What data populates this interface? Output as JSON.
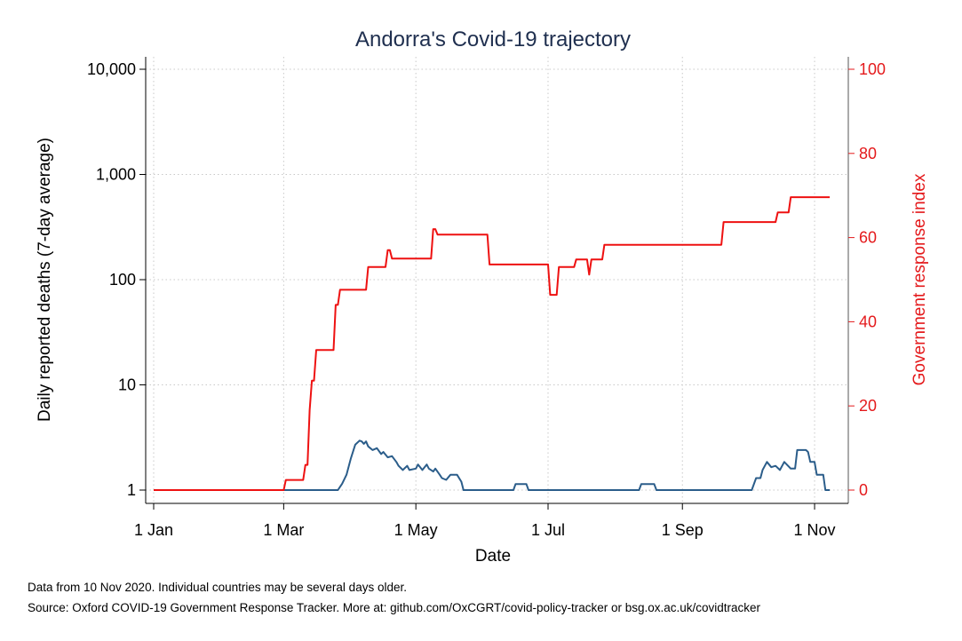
{
  "chart_data": {
    "type": "line",
    "title": "Andorra's Covid-19 trajectory",
    "xlabel": "Date",
    "ylabel_left": "Daily reported deaths (7-day average)",
    "ylabel_right": "Government response index",
    "y_left_scale": "log",
    "y_left_lim": [
      1,
      10000
    ],
    "y_left_ticks": [
      1,
      10,
      100,
      1000,
      10000
    ],
    "y_left_tick_labels": [
      "1",
      "10",
      "100",
      "1,000",
      "10,000"
    ],
    "y_right_lim": [
      0,
      100
    ],
    "y_right_ticks": [
      0,
      20,
      40,
      60,
      80,
      100
    ],
    "y_right_tick_labels": [
      "0",
      "20",
      "40",
      "60",
      "80",
      "100"
    ],
    "x_lim": [
      "2020-01-01",
      "2020-11-10"
    ],
    "x_ticks": [
      "2020-01-01",
      "2020-03-01",
      "2020-05-01",
      "2020-07-01",
      "2020-09-01",
      "2020-11-01"
    ],
    "x_tick_labels": [
      "1 Jan",
      "1 Mar",
      "1 May",
      "1 Jul",
      "1 Sep",
      "1 Nov"
    ],
    "grid": true,
    "series": [
      {
        "axis": "left",
        "color": "#2b5d8a",
        "points": [
          [
            "2020-01-01",
            1
          ],
          [
            "2020-03-26",
            1
          ],
          [
            "2020-03-28",
            1.15
          ],
          [
            "2020-03-30",
            1.4
          ],
          [
            "2020-04-01",
            2.0
          ],
          [
            "2020-04-03",
            2.7
          ],
          [
            "2020-04-05",
            2.95
          ],
          [
            "2020-04-06",
            2.9
          ],
          [
            "2020-04-07",
            2.75
          ],
          [
            "2020-04-08",
            2.9
          ],
          [
            "2020-04-09",
            2.6
          ],
          [
            "2020-04-11",
            2.4
          ],
          [
            "2020-04-13",
            2.5
          ],
          [
            "2020-04-15",
            2.2
          ],
          [
            "2020-04-16",
            2.3
          ],
          [
            "2020-04-18",
            2.05
          ],
          [
            "2020-04-20",
            2.1
          ],
          [
            "2020-04-22",
            1.85
          ],
          [
            "2020-04-23",
            1.7
          ],
          [
            "2020-04-25",
            1.55
          ],
          [
            "2020-04-27",
            1.7
          ],
          [
            "2020-04-28",
            1.55
          ],
          [
            "2020-05-01",
            1.6
          ],
          [
            "2020-05-02",
            1.75
          ],
          [
            "2020-05-04",
            1.55
          ],
          [
            "2020-05-06",
            1.75
          ],
          [
            "2020-05-07",
            1.6
          ],
          [
            "2020-05-09",
            1.5
          ],
          [
            "2020-05-10",
            1.6
          ],
          [
            "2020-05-12",
            1.4
          ],
          [
            "2020-05-13",
            1.3
          ],
          [
            "2020-05-15",
            1.25
          ],
          [
            "2020-05-17",
            1.4
          ],
          [
            "2020-05-20",
            1.4
          ],
          [
            "2020-05-22",
            1.2
          ],
          [
            "2020-05-23",
            1.0
          ],
          [
            "2020-06-15",
            1.0
          ],
          [
            "2020-06-16",
            1.14
          ],
          [
            "2020-06-21",
            1.14
          ],
          [
            "2020-06-22",
            1.0
          ],
          [
            "2020-08-12",
            1.0
          ],
          [
            "2020-08-13",
            1.14
          ],
          [
            "2020-08-19",
            1.14
          ],
          [
            "2020-08-20",
            1.0
          ],
          [
            "2020-10-03",
            1.0
          ],
          [
            "2020-10-05",
            1.3
          ],
          [
            "2020-10-07",
            1.3
          ],
          [
            "2020-10-08",
            1.55
          ],
          [
            "2020-10-10",
            1.85
          ],
          [
            "2020-10-12",
            1.65
          ],
          [
            "2020-10-14",
            1.7
          ],
          [
            "2020-10-16",
            1.55
          ],
          [
            "2020-10-18",
            1.85
          ],
          [
            "2020-10-21",
            1.6
          ],
          [
            "2020-10-23",
            1.6
          ],
          [
            "2020-10-24",
            2.4
          ],
          [
            "2020-10-28",
            2.4
          ],
          [
            "2020-10-29",
            2.3
          ],
          [
            "2020-10-30",
            1.85
          ],
          [
            "2020-11-01",
            1.85
          ],
          [
            "2020-11-02",
            1.4
          ],
          [
            "2020-11-05",
            1.4
          ],
          [
            "2020-11-06",
            1.0
          ],
          [
            "2020-11-08",
            1.0
          ]
        ]
      },
      {
        "axis": "right",
        "color": "#ee1111",
        "points": [
          [
            "2020-01-01",
            0
          ],
          [
            "2020-03-01",
            0
          ],
          [
            "2020-03-02",
            2.4
          ],
          [
            "2020-03-10",
            2.4
          ],
          [
            "2020-03-11",
            6.0
          ],
          [
            "2020-03-12",
            6.0
          ],
          [
            "2020-03-13",
            19.0
          ],
          [
            "2020-03-14",
            26.0
          ],
          [
            "2020-03-15",
            26.0
          ],
          [
            "2020-03-16",
            33.3
          ],
          [
            "2020-03-24",
            33.3
          ],
          [
            "2020-03-25",
            44.0
          ],
          [
            "2020-03-26",
            44.0
          ],
          [
            "2020-03-27",
            47.6
          ],
          [
            "2020-04-08",
            47.6
          ],
          [
            "2020-04-09",
            53.0
          ],
          [
            "2020-04-17",
            53.0
          ],
          [
            "2020-04-18",
            57.0
          ],
          [
            "2020-04-19",
            57.0
          ],
          [
            "2020-04-20",
            55.0
          ],
          [
            "2020-05-08",
            55.0
          ],
          [
            "2020-05-09",
            62.0
          ],
          [
            "2020-05-10",
            62.0
          ],
          [
            "2020-05-11",
            60.7
          ],
          [
            "2020-06-03",
            60.7
          ],
          [
            "2020-06-04",
            53.6
          ],
          [
            "2020-07-01",
            53.6
          ],
          [
            "2020-07-02",
            46.4
          ],
          [
            "2020-07-05",
            46.4
          ],
          [
            "2020-07-06",
            53.0
          ],
          [
            "2020-07-13",
            53.0
          ],
          [
            "2020-07-14",
            54.8
          ],
          [
            "2020-07-19",
            54.8
          ],
          [
            "2020-07-20",
            51.2
          ],
          [
            "2020-07-21",
            54.8
          ],
          [
            "2020-07-26",
            54.8
          ],
          [
            "2020-07-27",
            58.3
          ],
          [
            "2020-09-19",
            58.3
          ],
          [
            "2020-09-20",
            63.7
          ],
          [
            "2020-10-14",
            63.7
          ],
          [
            "2020-10-15",
            66.0
          ],
          [
            "2020-10-20",
            66.0
          ],
          [
            "2020-10-21",
            69.6
          ],
          [
            "2020-11-08",
            69.6
          ]
        ]
      }
    ]
  },
  "footnotes": [
    "Data from 10 Nov 2020. Individual countries may be several days older.",
    "Source: Oxford COVID-19 Government Response Tracker. More at: github.com/OxCGRT/covid-policy-tracker or bsg.ox.ac.uk/covidtracker"
  ]
}
